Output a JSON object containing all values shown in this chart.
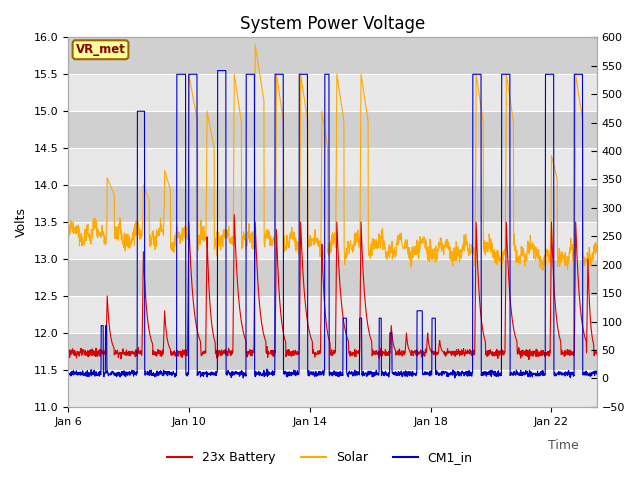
{
  "title": "System Power Voltage",
  "xlabel": "Time",
  "ylabel_left": "Volts",
  "ylim_left": [
    11.0,
    16.0
  ],
  "ylim_right": [
    -50,
    600
  ],
  "yticks_left": [
    11.0,
    11.5,
    12.0,
    12.5,
    13.0,
    13.5,
    14.0,
    14.5,
    15.0,
    15.5,
    16.0
  ],
  "yticks_right": [
    -50,
    0,
    50,
    100,
    150,
    200,
    250,
    300,
    350,
    400,
    450,
    500,
    550,
    600
  ],
  "xtick_labels": [
    "Jan 6",
    "Jan 10",
    "Jan 14",
    "Jan 18",
    "Jan 22"
  ],
  "xtick_positions": [
    0,
    4,
    8,
    12,
    16
  ],
  "total_days": 18,
  "colors": {
    "battery": "#dd0000",
    "solar": "#ffaa00",
    "cm1_in": "#0000cc",
    "bg_light": "#e8e8e8",
    "bg_dark": "#d0d0d0",
    "grid": "#ffffff",
    "vr_met_bg": "#ffff99",
    "vr_met_border": "#996600",
    "vr_met_text": "#880000"
  },
  "legend": [
    "23x Battery",
    "Solar",
    "CM1_in"
  ],
  "vr_met_label": "VR_met",
  "title_fontsize": 12,
  "axis_fontsize": 9,
  "tick_fontsize": 8,
  "legend_fontsize": 9,
  "band_boundaries": [
    11.0,
    11.5,
    12.0,
    12.5,
    13.0,
    13.5,
    14.0,
    14.5,
    15.0,
    15.5,
    16.0
  ]
}
